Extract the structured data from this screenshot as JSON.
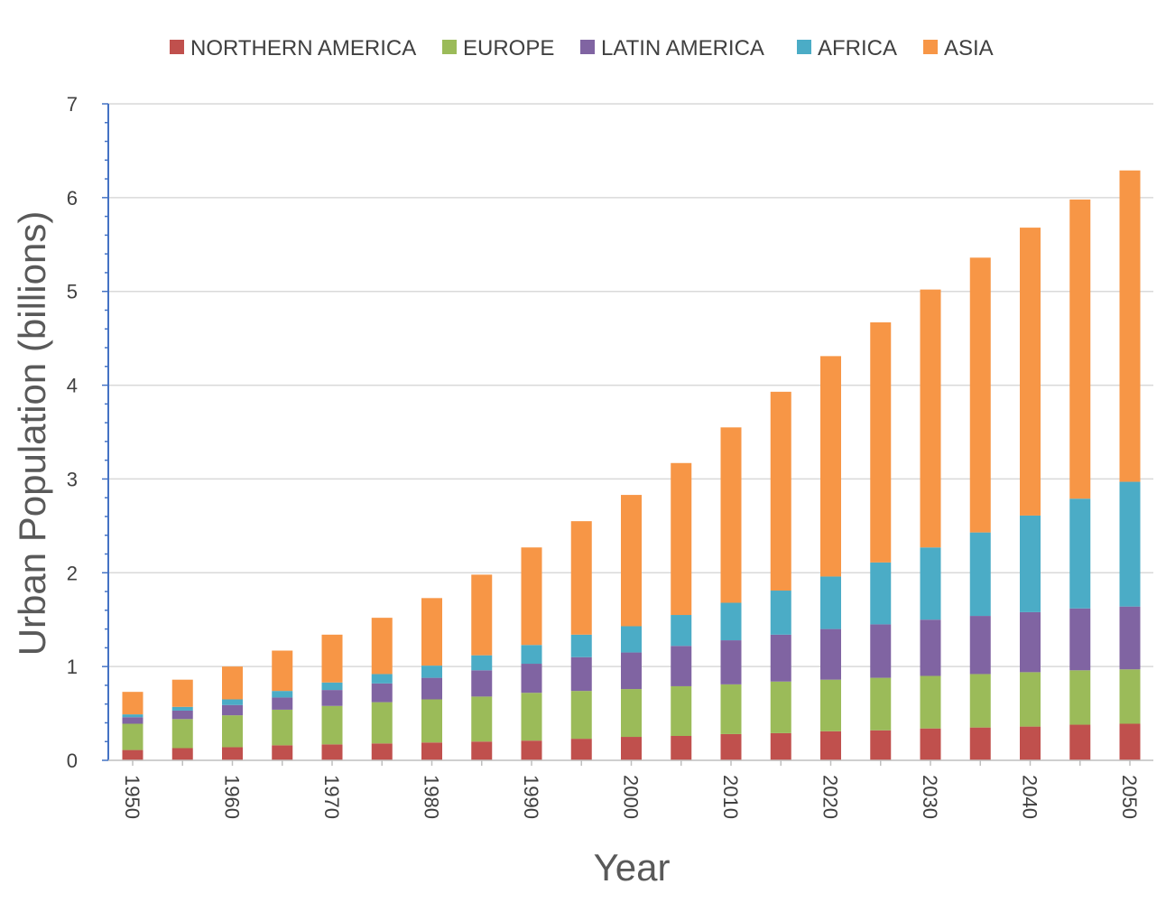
{
  "chart_data": {
    "type": "bar",
    "stacked": true,
    "title": "",
    "xlabel": "Year",
    "ylabel": "Urban Population (billions)",
    "ylim": [
      0,
      7
    ],
    "yticks": [
      0,
      1,
      2,
      3,
      4,
      5,
      6,
      7
    ],
    "grid": true,
    "legend_position": "top",
    "categories": [
      1950,
      1955,
      1960,
      1965,
      1970,
      1975,
      1980,
      1985,
      1990,
      1995,
      2000,
      2005,
      2010,
      2015,
      2020,
      2025,
      2030,
      2035,
      2040,
      2045,
      2050
    ],
    "x_tick_labels": [
      "1950",
      "",
      "1960",
      "",
      "1970",
      "",
      "1980",
      "",
      "1990",
      "",
      "2000",
      "",
      "2010",
      "",
      "2020",
      "",
      "2030",
      "",
      "2040",
      "",
      "2050"
    ],
    "series": [
      {
        "name": "NORTHERN AMERICA",
        "color": "#c0504d",
        "values": [
          0.11,
          0.13,
          0.14,
          0.16,
          0.17,
          0.18,
          0.19,
          0.2,
          0.21,
          0.23,
          0.25,
          0.26,
          0.28,
          0.29,
          0.31,
          0.32,
          0.34,
          0.35,
          0.36,
          0.38,
          0.39
        ]
      },
      {
        "name": "EUROPE",
        "color": "#9bbb59",
        "values": [
          0.28,
          0.31,
          0.34,
          0.38,
          0.41,
          0.44,
          0.46,
          0.48,
          0.51,
          0.51,
          0.51,
          0.53,
          0.53,
          0.55,
          0.55,
          0.56,
          0.56,
          0.57,
          0.58,
          0.58,
          0.58
        ]
      },
      {
        "name": "LATIN AMERICA",
        "color": "#8064a2",
        "values": [
          0.07,
          0.09,
          0.11,
          0.13,
          0.17,
          0.2,
          0.23,
          0.28,
          0.31,
          0.36,
          0.39,
          0.43,
          0.47,
          0.5,
          0.54,
          0.57,
          0.6,
          0.62,
          0.64,
          0.66,
          0.67
        ]
      },
      {
        "name": "AFRICA",
        "color": "#4bacc6",
        "values": [
          0.03,
          0.04,
          0.06,
          0.07,
          0.08,
          0.1,
          0.13,
          0.16,
          0.2,
          0.24,
          0.28,
          0.33,
          0.4,
          0.47,
          0.56,
          0.66,
          0.77,
          0.89,
          1.03,
          1.17,
          1.33
        ]
      },
      {
        "name": "ASIA",
        "color": "#f79646",
        "values": [
          0.24,
          0.29,
          0.35,
          0.43,
          0.51,
          0.6,
          0.72,
          0.86,
          1.04,
          1.21,
          1.4,
          1.62,
          1.87,
          2.12,
          2.35,
          2.56,
          2.75,
          2.93,
          3.07,
          3.19,
          3.32
        ]
      }
    ]
  }
}
